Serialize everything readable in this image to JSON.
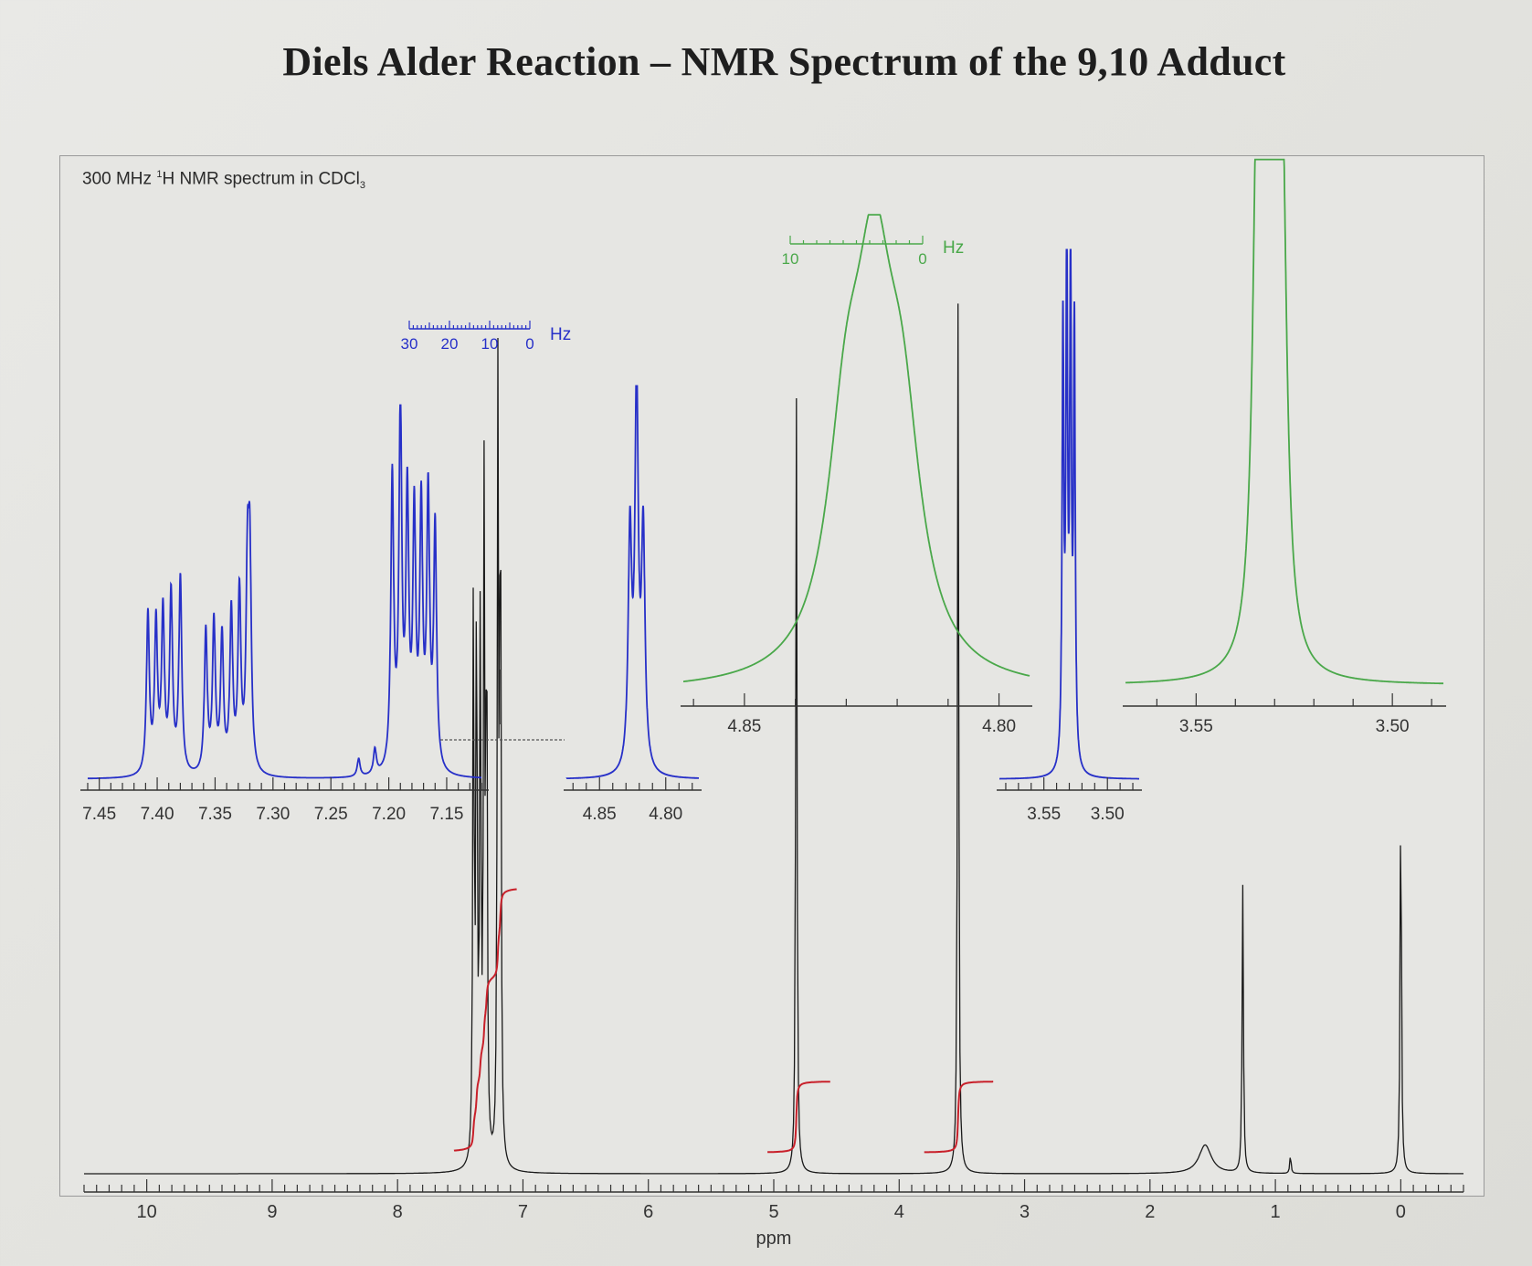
{
  "title": "Diels Alder Reaction – NMR Spectrum of the 9,10 Adduct",
  "subtitle": {
    "pre": "300 MHz ",
    "sup": "1",
    "mid": "H NMR spectrum in CDCl",
    "sub": "3"
  },
  "colors": {
    "spectrum": "#1a1a1a",
    "integral": "#c8202a",
    "inset_blue": "#2730c8",
    "inset_green": "#4aa84a",
    "axis": "#333333"
  },
  "chart_data": [
    {
      "type": "line",
      "name": "main-spectrum",
      "xlabel": "ppm",
      "xlim": [
        10.5,
        -0.5
      ],
      "x_reversed": true,
      "xticks": [
        10,
        9,
        8,
        7,
        6,
        5,
        4,
        3,
        2,
        1,
        0
      ],
      "xtick_labels": [
        "10",
        "9",
        "8",
        "7",
        "6",
        "5",
        "4",
        "3",
        "2",
        "1",
        "0"
      ],
      "peaks": [
        {
          "ppm": 7.395,
          "height": 0.6
        },
        {
          "ppm": 7.37,
          "height": 0.62
        },
        {
          "ppm": 7.34,
          "height": 0.57
        },
        {
          "ppm": 7.31,
          "height": 0.68
        },
        {
          "ppm": 7.29,
          "height": 0.6
        },
        {
          "ppm": 7.2,
          "height": 0.8
        },
        {
          "ppm": 7.18,
          "height": 0.78
        },
        {
          "ppm": 4.82,
          "height": 0.82
        },
        {
          "ppm": 3.53,
          "height": 0.92
        },
        {
          "ppm": 1.56,
          "height": 0.03,
          "broad": true
        },
        {
          "ppm": 1.26,
          "height": 0.3
        },
        {
          "ppm": 0.88,
          "height": 0.02
        },
        {
          "ppm": 0.0,
          "height": 0.42
        }
      ],
      "integrals": [
        {
          "from": 7.55,
          "to": 7.05,
          "start": 0.0,
          "end": 0.52
        },
        {
          "from": 5.05,
          "to": 4.55,
          "start": 0.0,
          "end": 0.14
        },
        {
          "from": 3.8,
          "to": 3.25,
          "start": 0.0,
          "end": 0.14
        }
      ]
    },
    {
      "type": "line",
      "name": "inset-aromatic",
      "xlim": [
        7.46,
        7.12
      ],
      "x_reversed": true,
      "xticks": [
        7.45,
        7.4,
        7.35,
        7.3,
        7.25,
        7.2,
        7.15
      ],
      "xtick_labels": [
        "7.45",
        "7.40",
        "7.35",
        "7.30",
        "7.25",
        "7.20",
        "7.15"
      ],
      "hz_scale_labels": [
        "30",
        "20",
        "10",
        "0"
      ],
      "hz_unit": "Hz",
      "peaks": [
        {
          "ppm": 7.408,
          "height": 0.45
        },
        {
          "ppm": 7.401,
          "height": 0.42
        },
        {
          "ppm": 7.395,
          "height": 0.45
        },
        {
          "ppm": 7.388,
          "height": 0.5
        },
        {
          "ppm": 7.38,
          "height": 0.55
        },
        {
          "ppm": 7.358,
          "height": 0.4
        },
        {
          "ppm": 7.351,
          "height": 0.42
        },
        {
          "ppm": 7.344,
          "height": 0.38
        },
        {
          "ppm": 7.336,
          "height": 0.45
        },
        {
          "ppm": 7.329,
          "height": 0.5
        },
        {
          "ppm": 7.322,
          "height": 0.52
        },
        {
          "ppm": 7.32,
          "height": 0.55
        },
        {
          "ppm": 7.226,
          "height": 0.05
        },
        {
          "ppm": 7.212,
          "height": 0.07
        },
        {
          "ppm": 7.197,
          "height": 0.82
        },
        {
          "ppm": 7.19,
          "height": 1.0
        },
        {
          "ppm": 7.184,
          "height": 0.75
        },
        {
          "ppm": 7.178,
          "height": 0.7
        },
        {
          "ppm": 7.172,
          "height": 0.72
        },
        {
          "ppm": 7.166,
          "height": 0.76
        },
        {
          "ppm": 7.16,
          "height": 0.68
        }
      ]
    },
    {
      "type": "line",
      "name": "inset-4.8-blue",
      "xlim": [
        4.875,
        4.775
      ],
      "x_reversed": true,
      "xticks": [
        4.85,
        4.8
      ],
      "xtick_labels": [
        "4.85",
        "4.80"
      ],
      "peaks": [
        {
          "ppm": 4.827,
          "height": 0.62
        },
        {
          "ppm": 4.822,
          "height": 1.0
        },
        {
          "ppm": 4.817,
          "height": 0.62
        }
      ]
    },
    {
      "type": "line",
      "name": "inset-3.5-blue",
      "xlim": [
        3.585,
        3.475
      ],
      "x_reversed": true,
      "xticks": [
        3.55,
        3.5
      ],
      "xtick_labels": [
        "3.55",
        "3.50"
      ],
      "peaks": [
        {
          "ppm": 3.535,
          "height": 0.86
        },
        {
          "ppm": 3.532,
          "height": 1.0
        },
        {
          "ppm": 3.529,
          "height": 0.96
        },
        {
          "ppm": 3.526,
          "height": 0.86
        }
      ]
    },
    {
      "type": "line",
      "name": "inset-4.8-green",
      "xlim": [
        4.862,
        4.794
      ],
      "x_reversed": true,
      "xticks": [
        4.85,
        4.8
      ],
      "xtick_labels": [
        "4.85",
        "4.80"
      ],
      "hz_scale_labels": [
        "10",
        "0"
      ],
      "hz_unit": "Hz",
      "peaks": [
        {
          "ppm": 4.83,
          "height": 0.45
        },
        {
          "ppm": 4.8245,
          "height": 0.72
        },
        {
          "ppm": 4.819,
          "height": 0.45
        }
      ]
    },
    {
      "type": "line",
      "name": "inset-3.5-green",
      "xlim": [
        3.568,
        3.487
      ],
      "x_reversed": true,
      "xticks": [
        3.55,
        3.5
      ],
      "xtick_labels": [
        "3.55",
        "3.50"
      ],
      "peaks": [
        {
          "ppm": 3.5345,
          "height": 0.85
        },
        {
          "ppm": 3.5325,
          "height": 0.98
        },
        {
          "ppm": 3.5305,
          "height": 1.0
        },
        {
          "ppm": 3.528,
          "height": 0.87
        }
      ]
    }
  ]
}
